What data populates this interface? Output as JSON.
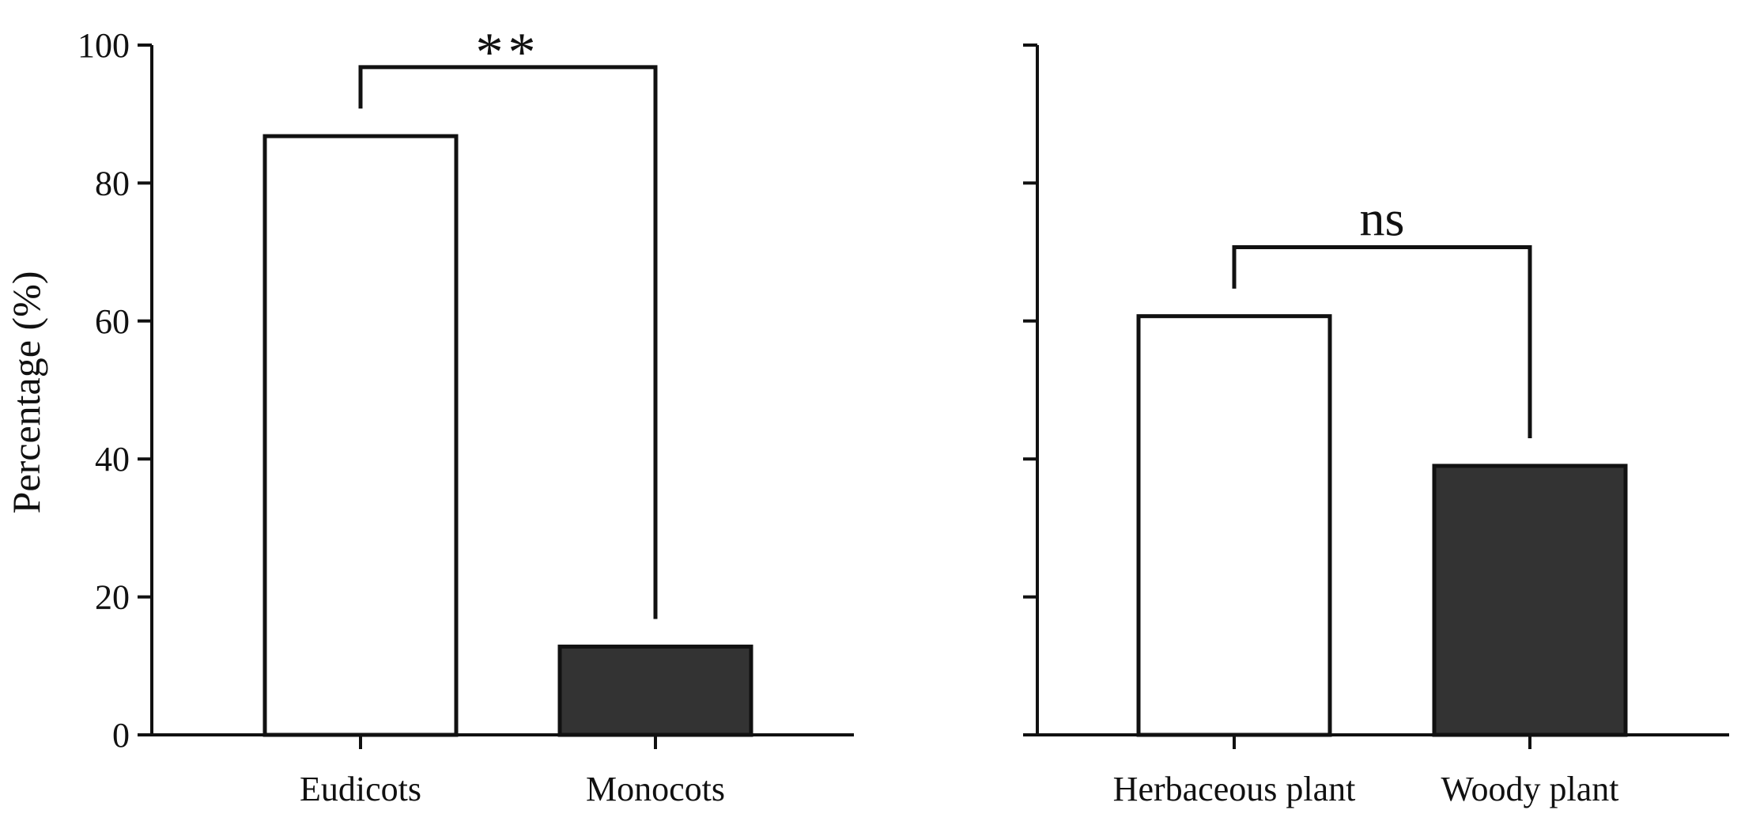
{
  "y_axis_label": "Percentage (%)",
  "chart_data": [
    {
      "type": "bar",
      "categories": [
        "Eudicots",
        "Monocots"
      ],
      "values": [
        86.8,
        12.8
      ],
      "bar_colors": [
        "#ffffff",
        "#333333"
      ],
      "ylabel": "Percentage (%)",
      "ylim": [
        0,
        100
      ],
      "yticks": [
        0,
        20,
        40,
        60,
        80,
        100
      ],
      "significance": {
        "label": "**",
        "between": [
          "Eudicots",
          "Monocots"
        ]
      },
      "grid": false
    },
    {
      "type": "bar",
      "categories": [
        "Herbaceous plant",
        "Woody plant"
      ],
      "values": [
        60.7,
        39
      ],
      "bar_colors": [
        "#ffffff",
        "#333333"
      ],
      "ylim": [
        0,
        100
      ],
      "yticks": [
        0,
        20,
        40,
        60,
        80,
        100
      ],
      "significance": {
        "label": "ns",
        "between": [
          "Herbaceous plant",
          "Woody plant"
        ]
      },
      "grid": false
    }
  ]
}
